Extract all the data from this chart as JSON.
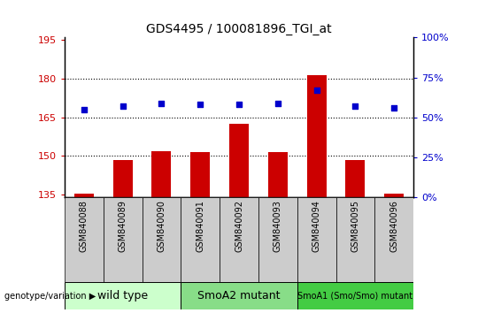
{
  "title": "GDS4495 / 100081896_TGI_at",
  "samples": [
    "GSM840088",
    "GSM840089",
    "GSM840090",
    "GSM840091",
    "GSM840092",
    "GSM840093",
    "GSM840094",
    "GSM840095",
    "GSM840096"
  ],
  "bar_values": [
    135.5,
    148.5,
    152.0,
    151.5,
    162.5,
    151.5,
    181.5,
    148.5,
    135.5
  ],
  "percentile_values": [
    55,
    57,
    59,
    58,
    58,
    59,
    67,
    57,
    56
  ],
  "ylim_left": [
    134,
    196
  ],
  "ylim_right": [
    0,
    100
  ],
  "yticks_left": [
    135,
    150,
    165,
    180,
    195
  ],
  "yticks_right": [
    0,
    25,
    50,
    75,
    100
  ],
  "bar_color": "#cc0000",
  "dot_color": "#0000cc",
  "bar_bottom": 134,
  "group_colors": [
    "#ccffcc",
    "#88dd88",
    "#44cc44"
  ],
  "group_labels": [
    "wild type",
    "SmoA2 mutant",
    "SmoA1 (Smo/Smo) mutant"
  ],
  "group_starts": [
    0,
    3,
    6
  ],
  "group_ends": [
    3,
    6,
    9
  ],
  "group_label_fontsizes": [
    9,
    9,
    7
  ],
  "legend_count_color": "#cc0000",
  "legend_dot_color": "#0000cc",
  "tick_label_color_left": "#cc0000",
  "tick_label_color_right": "#0000cc",
  "hgrid_values": [
    150,
    165,
    180
  ],
  "sample_box_color": "#cccccc",
  "title_fontsize": 10,
  "ytick_fontsize": 8,
  "xtick_fontsize": 7
}
